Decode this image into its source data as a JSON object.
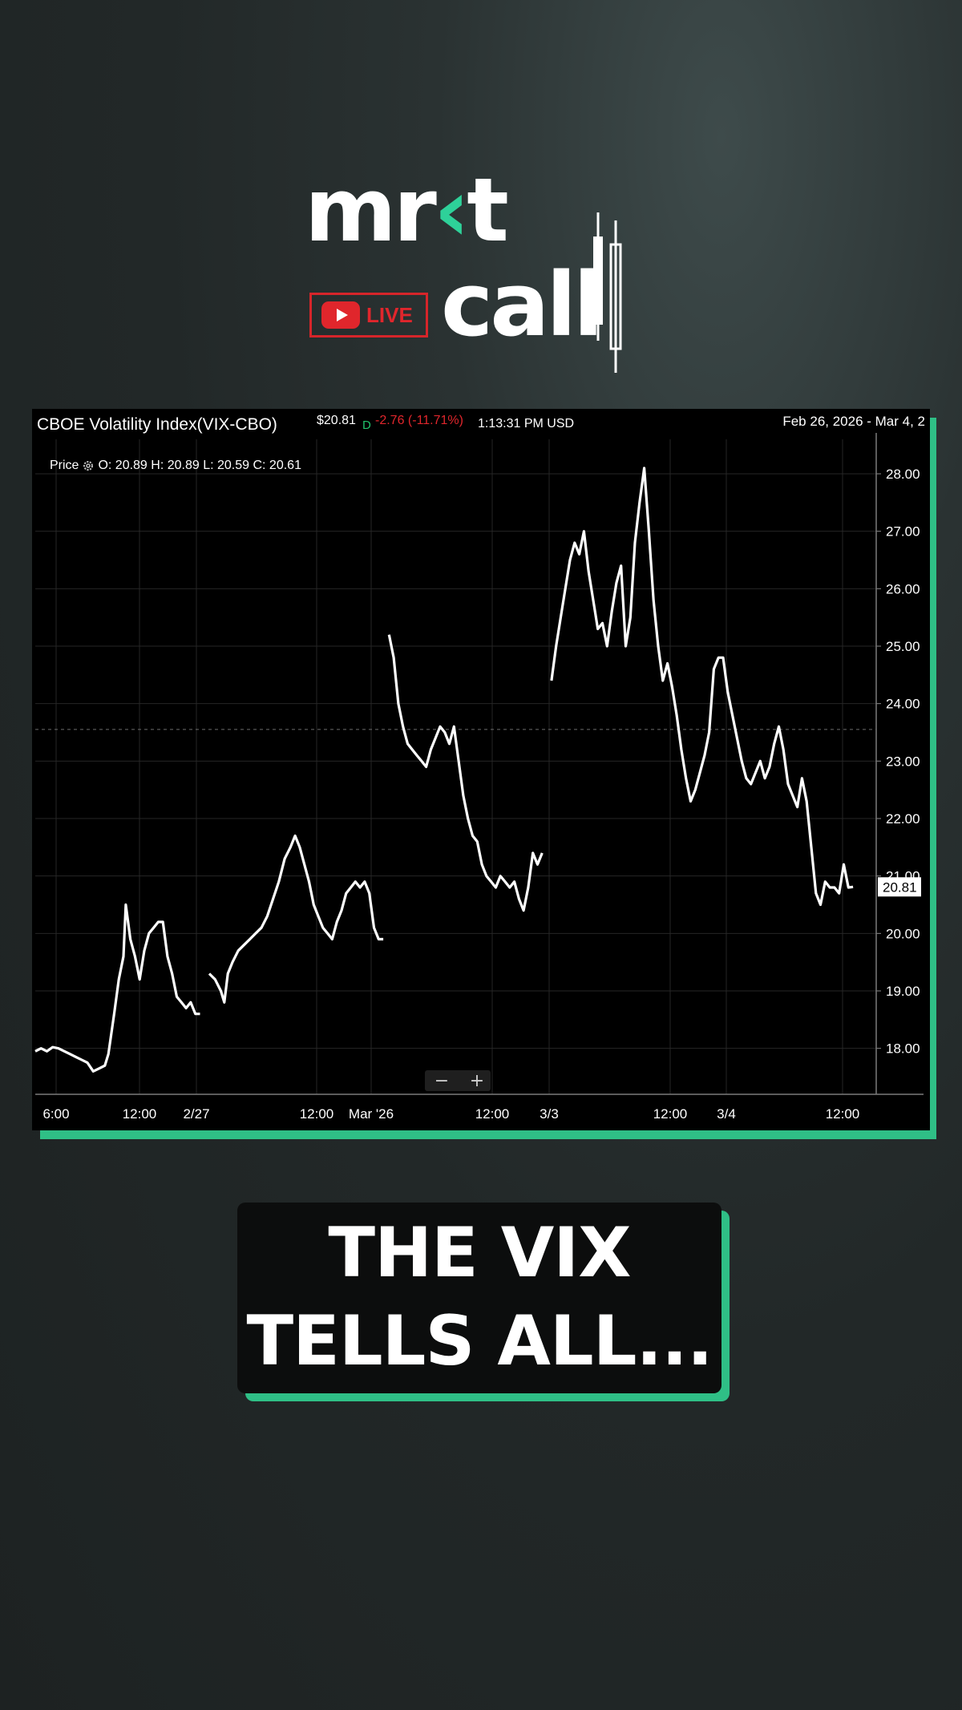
{
  "logo": {
    "word_top": "mr",
    "word_top_accent": "‹",
    "word_top_end": "t",
    "word_bottom": "call",
    "live_label": "LIVE",
    "accent": "#2ed199",
    "live_color": "#e0262c"
  },
  "header": {
    "title": "CBOE Volatility Index(VIX-CBO)",
    "price": "$20.81",
    "d_marker": "D",
    "change": "-2.76 (-11.71%)",
    "time_currency": "1:13:31 PM USD",
    "date_range": "Feb 26, 2026 - Mar 4, 2",
    "ohlc_label": "Price",
    "ohlc_values": "O: 20.89 H: 20.89 L: 20.59 C: 20.61"
  },
  "zoom": {
    "minus": "−",
    "plus": "+"
  },
  "caption": {
    "line1": "THE VIX",
    "line2": "TELLS ALL..."
  },
  "chart_data": {
    "type": "line",
    "x_tick_labels": [
      "6:00",
      "12:00",
      "2/27",
      "12:00",
      "Mar '26",
      "12:00",
      "3/3",
      "12:00",
      "3/4",
      "12:00"
    ],
    "y_tick_labels": [
      "18.00",
      "19.00",
      "20.00",
      "21.00",
      "22.00",
      "23.00",
      "24.00",
      "25.00",
      "26.00",
      "27.00",
      "28.00"
    ],
    "ylim": [
      17.2,
      28.6
    ],
    "last_price_label": "20.81",
    "crosshair_y": 23.55,
    "series": [
      {
        "segment": 1,
        "points": [
          [
            0,
            17.95
          ],
          [
            0.5,
            18.0
          ],
          [
            1,
            17.95
          ],
          [
            1.5,
            18.02
          ],
          [
            2,
            18.0
          ],
          [
            2.5,
            17.95
          ],
          [
            3,
            17.9
          ],
          [
            3.5,
            17.85
          ],
          [
            4,
            17.8
          ],
          [
            4.5,
            17.75
          ],
          [
            5,
            17.6
          ],
          [
            5.5,
            17.65
          ],
          [
            6,
            17.7
          ],
          [
            6.3,
            17.9
          ],
          [
            6.8,
            18.6
          ],
          [
            7.2,
            19.2
          ],
          [
            7.6,
            19.6
          ],
          [
            7.8,
            20.5
          ],
          [
            8.2,
            19.9
          ],
          [
            8.6,
            19.6
          ],
          [
            9,
            19.2
          ],
          [
            9.4,
            19.7
          ],
          [
            9.8,
            20.0
          ],
          [
            10.2,
            20.1
          ],
          [
            10.6,
            20.2
          ],
          [
            11,
            20.2
          ],
          [
            11.4,
            19.6
          ],
          [
            11.8,
            19.3
          ],
          [
            12.2,
            18.9
          ],
          [
            12.6,
            18.8
          ],
          [
            13.0,
            18.7
          ],
          [
            13.4,
            18.8
          ],
          [
            13.8,
            18.6
          ],
          [
            14.2,
            18.6
          ]
        ]
      },
      {
        "segment": 2,
        "points": [
          [
            15,
            19.3
          ],
          [
            15.5,
            19.2
          ],
          [
            16,
            19.0
          ],
          [
            16.3,
            18.8
          ],
          [
            16.6,
            19.3
          ],
          [
            17,
            19.5
          ],
          [
            17.5,
            19.7
          ],
          [
            18,
            19.8
          ],
          [
            18.5,
            19.9
          ],
          [
            19,
            20.0
          ],
          [
            19.5,
            20.1
          ],
          [
            20,
            20.3
          ],
          [
            20.5,
            20.6
          ],
          [
            21,
            20.9
          ],
          [
            21.5,
            21.3
          ],
          [
            22,
            21.5
          ],
          [
            22.4,
            21.7
          ],
          [
            22.8,
            21.5
          ],
          [
            23.2,
            21.2
          ],
          [
            23.6,
            20.9
          ],
          [
            24,
            20.5
          ],
          [
            24.4,
            20.3
          ],
          [
            24.8,
            20.1
          ],
          [
            25.2,
            20.0
          ],
          [
            25.6,
            19.9
          ],
          [
            26,
            20.2
          ],
          [
            26.4,
            20.4
          ],
          [
            26.8,
            20.7
          ],
          [
            27.2,
            20.8
          ],
          [
            27.6,
            20.9
          ],
          [
            28,
            20.8
          ],
          [
            28.4,
            20.9
          ],
          [
            28.8,
            20.7
          ],
          [
            29.2,
            20.1
          ],
          [
            29.6,
            19.9
          ],
          [
            30,
            19.9
          ]
        ]
      },
      {
        "segment": 3,
        "points": [
          [
            30.5,
            25.2
          ],
          [
            30.9,
            24.8
          ],
          [
            31.3,
            24.0
          ],
          [
            31.7,
            23.6
          ],
          [
            32.1,
            23.3
          ],
          [
            32.5,
            23.2
          ],
          [
            32.9,
            23.1
          ],
          [
            33.3,
            23.0
          ],
          [
            33.7,
            22.9
          ],
          [
            34.1,
            23.2
          ],
          [
            34.5,
            23.4
          ],
          [
            34.9,
            23.6
          ],
          [
            35.3,
            23.5
          ],
          [
            35.7,
            23.3
          ],
          [
            36.1,
            23.6
          ],
          [
            36.5,
            23.0
          ],
          [
            36.9,
            22.4
          ],
          [
            37.3,
            22.0
          ],
          [
            37.7,
            21.7
          ],
          [
            38.1,
            21.6
          ],
          [
            38.5,
            21.2
          ],
          [
            38.9,
            21.0
          ],
          [
            39.3,
            20.9
          ],
          [
            39.7,
            20.8
          ],
          [
            40.1,
            21.0
          ],
          [
            40.5,
            20.9
          ],
          [
            40.9,
            20.8
          ],
          [
            41.3,
            20.9
          ],
          [
            41.7,
            20.6
          ],
          [
            42.1,
            20.4
          ],
          [
            42.5,
            20.8
          ],
          [
            42.9,
            21.4
          ],
          [
            43.3,
            21.2
          ],
          [
            43.7,
            21.4
          ]
        ]
      },
      {
        "segment": 4,
        "points": [
          [
            44.5,
            24.4
          ],
          [
            44.9,
            25.0
          ],
          [
            45.3,
            25.5
          ],
          [
            45.7,
            26.0
          ],
          [
            46.1,
            26.5
          ],
          [
            46.5,
            26.8
          ],
          [
            46.9,
            26.6
          ],
          [
            47.3,
            27.0
          ],
          [
            47.7,
            26.3
          ],
          [
            48.1,
            25.8
          ],
          [
            48.5,
            25.3
          ],
          [
            48.9,
            25.4
          ],
          [
            49.3,
            25.0
          ],
          [
            49.7,
            25.6
          ],
          [
            50.1,
            26.1
          ],
          [
            50.5,
            26.4
          ],
          [
            50.9,
            25.0
          ],
          [
            51.3,
            25.5
          ],
          [
            51.7,
            26.8
          ],
          [
            52.1,
            27.5
          ],
          [
            52.5,
            28.1
          ],
          [
            52.9,
            27.0
          ],
          [
            53.3,
            25.8
          ],
          [
            53.7,
            25.0
          ],
          [
            54.1,
            24.4
          ],
          [
            54.5,
            24.7
          ],
          [
            54.9,
            24.3
          ],
          [
            55.3,
            23.8
          ],
          [
            55.7,
            23.2
          ],
          [
            56.1,
            22.7
          ],
          [
            56.5,
            22.3
          ],
          [
            56.9,
            22.5
          ],
          [
            57.3,
            22.8
          ],
          [
            57.7,
            23.1
          ],
          [
            58.1,
            23.5
          ],
          [
            58.5,
            24.6
          ],
          [
            58.9,
            24.8
          ],
          [
            59.3,
            24.8
          ],
          [
            59.7,
            24.2
          ],
          [
            60.1,
            23.8
          ],
          [
            60.5,
            23.4
          ],
          [
            60.9,
            23.0
          ],
          [
            61.3,
            22.7
          ],
          [
            61.7,
            22.6
          ],
          [
            62.1,
            22.8
          ],
          [
            62.5,
            23.0
          ],
          [
            62.9,
            22.7
          ],
          [
            63.3,
            22.9
          ],
          [
            63.7,
            23.3
          ],
          [
            64.1,
            23.6
          ],
          [
            64.5,
            23.2
          ],
          [
            64.9,
            22.6
          ],
          [
            65.3,
            22.4
          ],
          [
            65.7,
            22.2
          ],
          [
            66.1,
            22.7
          ],
          [
            66.5,
            22.3
          ],
          [
            66.9,
            21.5
          ],
          [
            67.3,
            20.7
          ],
          [
            67.7,
            20.5
          ],
          [
            68.1,
            20.9
          ],
          [
            68.5,
            20.8
          ],
          [
            68.9,
            20.8
          ],
          [
            69.3,
            20.7
          ],
          [
            69.7,
            21.2
          ],
          [
            70.1,
            20.8
          ],
          [
            70.5,
            20.81
          ]
        ]
      }
    ]
  }
}
